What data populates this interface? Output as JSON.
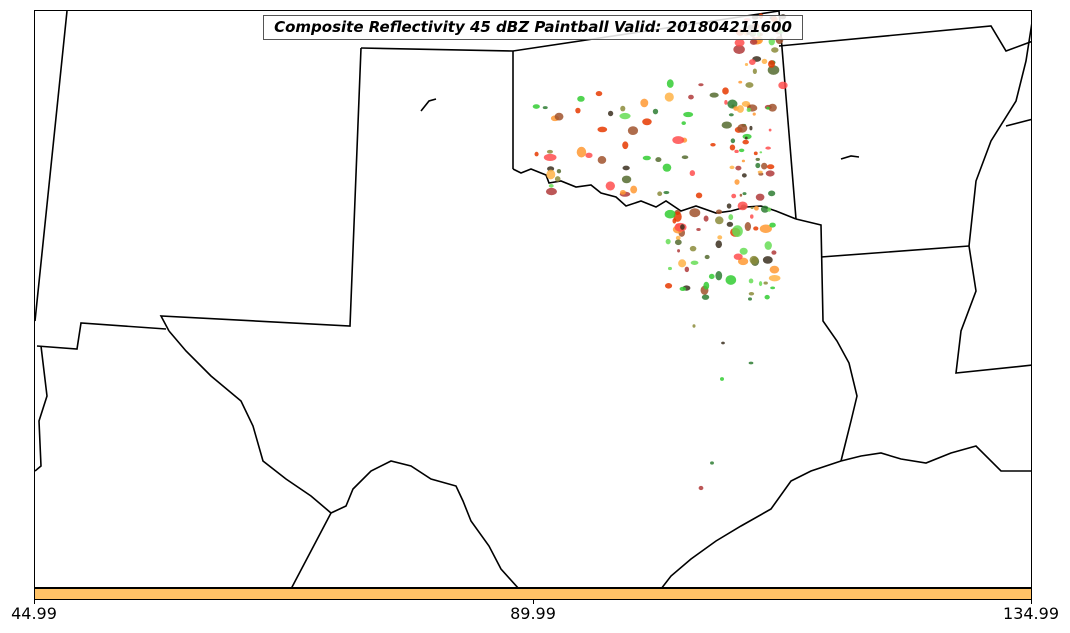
{
  "map": {
    "title": "Composite Reflectivity 45 dBZ Paintball Valid: 201804211600",
    "colorbar": {
      "color": "#ffc266",
      "ticks": [
        "44.99",
        "89.99",
        "134.99"
      ]
    },
    "colors": {
      "boundary": "#000000",
      "member_colors": [
        "#ff4d4d",
        "#e63900",
        "#33cc33",
        "#66dd55",
        "#2e7d32",
        "#ffb347",
        "#ff9933",
        "#8b8b3a",
        "#a0522d",
        "#b03a3a",
        "#556b2f",
        "#3b2f1e"
      ]
    }
  }
}
